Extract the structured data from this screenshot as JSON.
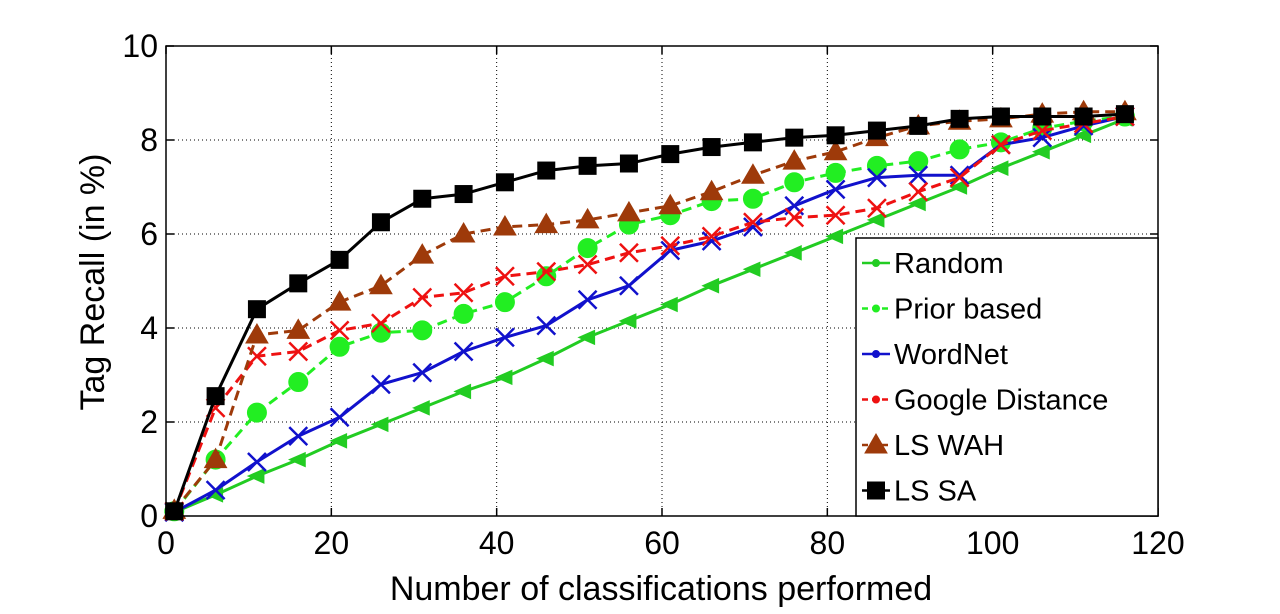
{
  "chart_data": {
    "type": "line",
    "title": "",
    "xlabel": "Number of classifications performed",
    "ylabel": "Tag Recall (in %)",
    "xlim": [
      0,
      120
    ],
    "ylim": [
      0,
      10
    ],
    "xticks": [
      0,
      20,
      40,
      60,
      80,
      100,
      120
    ],
    "yticks": [
      0,
      2,
      4,
      6,
      8,
      10
    ],
    "grid": true,
    "legend_position": "lower-right",
    "x": [
      1,
      6,
      11,
      16,
      21,
      26,
      31,
      36,
      41,
      46,
      51,
      56,
      61,
      66,
      71,
      76,
      81,
      86,
      91,
      96,
      101,
      106,
      111,
      116
    ],
    "series": [
      {
        "name": "Random",
        "color": "#22cc22",
        "style": "solid",
        "marker": "triangle-left",
        "values": [
          0.08,
          0.45,
          0.85,
          1.2,
          1.6,
          1.95,
          2.3,
          2.65,
          2.95,
          3.35,
          3.8,
          4.15,
          4.5,
          4.9,
          5.25,
          5.6,
          5.95,
          6.3,
          6.65,
          7.0,
          7.4,
          7.75,
          8.1,
          8.45
        ]
      },
      {
        "name": "Prior based",
        "color": "#22ee22",
        "style": "dashed",
        "marker": "circle",
        "values": [
          0.1,
          1.2,
          2.2,
          2.85,
          3.6,
          3.9,
          3.95,
          4.3,
          4.55,
          5.1,
          5.7,
          6.2,
          6.4,
          6.7,
          6.75,
          7.1,
          7.3,
          7.45,
          7.55,
          7.8,
          7.95,
          8.25,
          8.4,
          8.5
        ]
      },
      {
        "name": "WordNet",
        "color": "#1111cc",
        "style": "solid",
        "marker": "x",
        "values": [
          0.08,
          0.55,
          1.15,
          1.7,
          2.1,
          2.8,
          3.05,
          3.5,
          3.8,
          4.05,
          4.6,
          4.9,
          5.65,
          5.85,
          6.15,
          6.6,
          6.95,
          7.2,
          7.25,
          7.25,
          7.9,
          8.05,
          8.3,
          8.5
        ]
      },
      {
        "name": "Google Distance",
        "color": "#ee1111",
        "style": "dashed",
        "marker": "x",
        "values": [
          0.1,
          2.3,
          3.4,
          3.5,
          3.95,
          4.1,
          4.65,
          4.75,
          5.1,
          5.2,
          5.35,
          5.6,
          5.75,
          5.95,
          6.25,
          6.35,
          6.4,
          6.55,
          6.9,
          7.2,
          7.9,
          8.2,
          8.35,
          8.5
        ]
      },
      {
        "name": "LS WAH",
        "color": "#9e3a0a",
        "style": "dashed",
        "marker": "triangle",
        "values": [
          0.12,
          1.2,
          3.85,
          3.95,
          4.55,
          4.9,
          5.55,
          6.0,
          6.15,
          6.2,
          6.3,
          6.45,
          6.6,
          6.9,
          7.25,
          7.55,
          7.75,
          8.05,
          8.3,
          8.4,
          8.45,
          8.55,
          8.6,
          8.6
        ]
      },
      {
        "name": "LS SA",
        "color": "#000000",
        "style": "solid",
        "marker": "square",
        "values": [
          0.1,
          2.55,
          4.4,
          4.95,
          5.45,
          6.25,
          6.75,
          6.85,
          7.1,
          7.35,
          7.45,
          7.5,
          7.7,
          7.85,
          7.95,
          8.05,
          8.1,
          8.2,
          8.3,
          8.45,
          8.5,
          8.5,
          8.5,
          8.55
        ]
      }
    ]
  }
}
